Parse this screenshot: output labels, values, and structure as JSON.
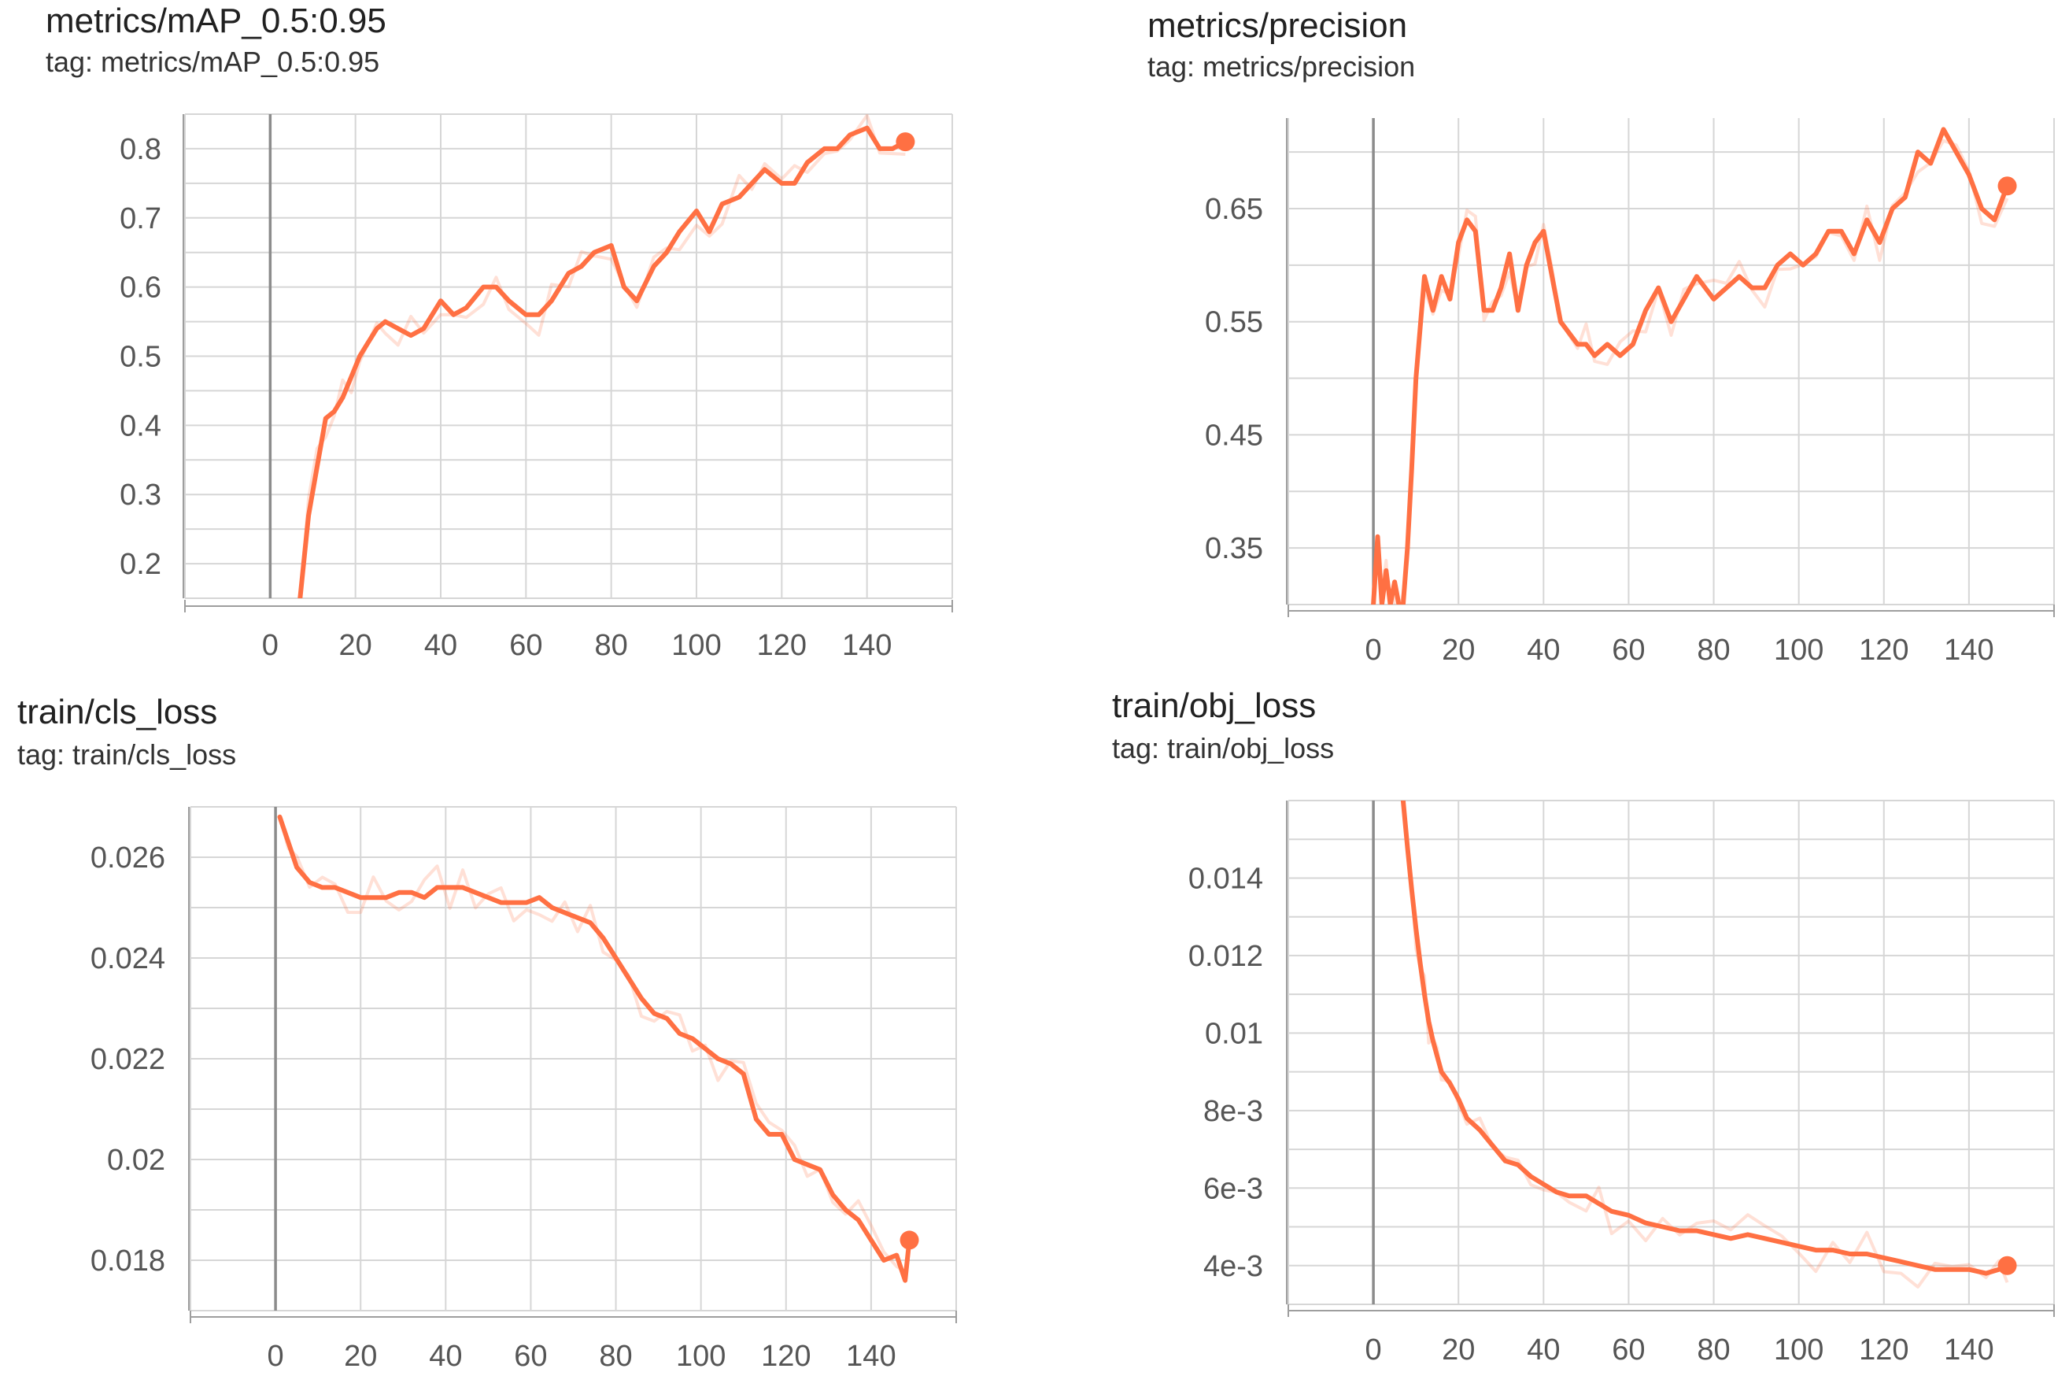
{
  "chart_data": [
    {
      "type": "line",
      "title": "metrics/mAP_0.5:0.95",
      "tag": "tag: metrics/mAP_0.5:0.95",
      "xlabel": "",
      "ylabel": "",
      "xlim": [
        -20,
        160
      ],
      "ylim": [
        0.15,
        0.85
      ],
      "xticks": [
        {
          "v": 0,
          "label": "0"
        },
        {
          "v": 20,
          "label": "20"
        },
        {
          "v": 40,
          "label": "40"
        },
        {
          "v": 60,
          "label": "60"
        },
        {
          "v": 80,
          "label": "80"
        },
        {
          "v": 100,
          "label": "100"
        },
        {
          "v": 120,
          "label": "120"
        },
        {
          "v": 140,
          "label": "140"
        }
      ],
      "yticks": [
        {
          "v": 0.2,
          "label": "0.2"
        },
        {
          "v": 0.3,
          "label": "0.3"
        },
        {
          "v": 0.4,
          "label": "0.4"
        },
        {
          "v": 0.5,
          "label": "0.5"
        },
        {
          "v": 0.6,
          "label": "0.6"
        },
        {
          "v": 0.7,
          "label": "0.7"
        },
        {
          "v": 0.8,
          "label": "0.8"
        }
      ],
      "grid": true,
      "color": "#ff7043",
      "series": [
        {
          "x": [
            7,
            9,
            11,
            13,
            15,
            17,
            19,
            21,
            23,
            25,
            27,
            30,
            33,
            36,
            40,
            43,
            46,
            50,
            53,
            56,
            60,
            63,
            66,
            70,
            73,
            76,
            80,
            83,
            86,
            90,
            93,
            96,
            100,
            103,
            106,
            110,
            113,
            116,
            120,
            123,
            126,
            130,
            133,
            136,
            140,
            143,
            146,
            149
          ],
          "y": [
            0.15,
            0.27,
            0.34,
            0.41,
            0.42,
            0.44,
            0.47,
            0.5,
            0.52,
            0.54,
            0.55,
            0.54,
            0.53,
            0.54,
            0.58,
            0.56,
            0.57,
            0.6,
            0.6,
            0.58,
            0.56,
            0.56,
            0.58,
            0.62,
            0.63,
            0.65,
            0.66,
            0.6,
            0.58,
            0.63,
            0.65,
            0.68,
            0.71,
            0.68,
            0.72,
            0.73,
            0.75,
            0.77,
            0.75,
            0.75,
            0.78,
            0.8,
            0.8,
            0.82,
            0.83,
            0.8,
            0.8,
            0.81
          ]
        }
      ]
    },
    {
      "type": "line",
      "title": "metrics/precision",
      "tag": "tag: metrics/precision",
      "xlabel": "",
      "ylabel": "",
      "xlim": [
        -20,
        160
      ],
      "ylim": [
        0.3,
        0.73
      ],
      "xticks": [
        {
          "v": 0,
          "label": "0"
        },
        {
          "v": 20,
          "label": "20"
        },
        {
          "v": 40,
          "label": "40"
        },
        {
          "v": 60,
          "label": "60"
        },
        {
          "v": 80,
          "label": "80"
        },
        {
          "v": 100,
          "label": "100"
        },
        {
          "v": 120,
          "label": "120"
        },
        {
          "v": 140,
          "label": "140"
        }
      ],
      "yticks": [
        {
          "v": 0.35,
          "label": "0.35"
        },
        {
          "v": 0.45,
          "label": "0.45"
        },
        {
          "v": 0.55,
          "label": "0.55"
        },
        {
          "v": 0.65,
          "label": "0.65"
        }
      ],
      "grid": true,
      "color": "#ff7043",
      "series": [
        {
          "x": [
            0,
            1,
            2,
            3,
            4,
            5,
            6,
            7,
            8,
            9,
            10,
            12,
            14,
            16,
            18,
            20,
            22,
            24,
            26,
            28,
            30,
            32,
            34,
            36,
            38,
            40,
            42,
            44,
            46,
            48,
            50,
            52,
            55,
            58,
            61,
            64,
            67,
            70,
            73,
            76,
            80,
            83,
            86,
            89,
            92,
            95,
            98,
            101,
            104,
            107,
            110,
            113,
            116,
            119,
            122,
            125,
            128,
            131,
            134,
            137,
            140,
            143,
            146,
            149
          ],
          "y": [
            0.3,
            0.36,
            0.3,
            0.33,
            0.3,
            0.32,
            0.3,
            0.3,
            0.35,
            0.42,
            0.5,
            0.59,
            0.56,
            0.59,
            0.57,
            0.62,
            0.64,
            0.63,
            0.56,
            0.56,
            0.58,
            0.61,
            0.56,
            0.6,
            0.62,
            0.63,
            0.59,
            0.55,
            0.54,
            0.53,
            0.53,
            0.52,
            0.53,
            0.52,
            0.53,
            0.56,
            0.58,
            0.55,
            0.57,
            0.59,
            0.57,
            0.58,
            0.59,
            0.58,
            0.58,
            0.6,
            0.61,
            0.6,
            0.61,
            0.63,
            0.63,
            0.61,
            0.64,
            0.62,
            0.65,
            0.66,
            0.7,
            0.69,
            0.72,
            0.7,
            0.68,
            0.65,
            0.64,
            0.67
          ]
        }
      ]
    },
    {
      "type": "line",
      "title": "train/cls_loss",
      "tag": "tag: train/cls_loss",
      "xlabel": "",
      "ylabel": "",
      "xlim": [
        -20,
        160
      ],
      "ylim": [
        0.017,
        0.027
      ],
      "xticks": [
        {
          "v": 0,
          "label": "0"
        },
        {
          "v": 20,
          "label": "20"
        },
        {
          "v": 40,
          "label": "40"
        },
        {
          "v": 60,
          "label": "60"
        },
        {
          "v": 80,
          "label": "80"
        },
        {
          "v": 100,
          "label": "100"
        },
        {
          "v": 120,
          "label": "120"
        },
        {
          "v": 140,
          "label": "140"
        }
      ],
      "yticks": [
        {
          "v": 0.018,
          "label": "0.018"
        },
        {
          "v": 0.02,
          "label": "0.02"
        },
        {
          "v": 0.022,
          "label": "0.022"
        },
        {
          "v": 0.024,
          "label": "0.024"
        },
        {
          "v": 0.026,
          "label": "0.026"
        }
      ],
      "grid": true,
      "color": "#ff7043",
      "series": [
        {
          "x": [
            1,
            3,
            5,
            8,
            11,
            14,
            17,
            20,
            23,
            26,
            29,
            32,
            35,
            38,
            41,
            44,
            47,
            50,
            53,
            56,
            59,
            62,
            65,
            68,
            71,
            74,
            77,
            80,
            83,
            86,
            89,
            92,
            95,
            98,
            101,
            104,
            107,
            110,
            113,
            116,
            119,
            122,
            125,
            128,
            131,
            134,
            137,
            140,
            143,
            146,
            148,
            149
          ],
          "y": [
            0.0268,
            0.0263,
            0.0258,
            0.0255,
            0.0254,
            0.0254,
            0.0253,
            0.0252,
            0.0252,
            0.0252,
            0.0253,
            0.0253,
            0.0252,
            0.0254,
            0.0254,
            0.0254,
            0.0253,
            0.0252,
            0.0251,
            0.0251,
            0.0251,
            0.0252,
            0.025,
            0.0249,
            0.0248,
            0.0247,
            0.0244,
            0.024,
            0.0236,
            0.0232,
            0.0229,
            0.0228,
            0.0225,
            0.0224,
            0.0222,
            0.022,
            0.0219,
            0.0217,
            0.0208,
            0.0205,
            0.0205,
            0.02,
            0.0199,
            0.0198,
            0.0193,
            0.019,
            0.0188,
            0.0184,
            0.018,
            0.0181,
            0.0176,
            0.0184
          ]
        }
      ]
    },
    {
      "type": "line",
      "title": "train/obj_loss",
      "tag": "tag: train/obj_loss",
      "xlabel": "",
      "ylabel": "",
      "xlim": [
        -20,
        160
      ],
      "ylim": [
        0.003,
        0.016
      ],
      "xticks": [
        {
          "v": 0,
          "label": "0"
        },
        {
          "v": 20,
          "label": "20"
        },
        {
          "v": 40,
          "label": "40"
        },
        {
          "v": 60,
          "label": "60"
        },
        {
          "v": 80,
          "label": "80"
        },
        {
          "v": 100,
          "label": "100"
        },
        {
          "v": 120,
          "label": "120"
        },
        {
          "v": 140,
          "label": "140"
        }
      ],
      "yticks": [
        {
          "v": 0.004,
          "label": "4e-3"
        },
        {
          "v": 0.006,
          "label": "6e-3"
        },
        {
          "v": 0.008,
          "label": "8e-3"
        },
        {
          "v": 0.01,
          "label": "0.01"
        },
        {
          "v": 0.012,
          "label": "0.012"
        },
        {
          "v": 0.014,
          "label": "0.014"
        }
      ],
      "grid": true,
      "color": "#ff7043",
      "series": [
        {
          "x": [
            7,
            8,
            9,
            10,
            11,
            12,
            13,
            14,
            15,
            16,
            18,
            20,
            22,
            25,
            28,
            31,
            34,
            37,
            40,
            43,
            46,
            50,
            53,
            56,
            60,
            64,
            68,
            72,
            76,
            80,
            84,
            88,
            92,
            96,
            100,
            104,
            108,
            112,
            116,
            120,
            124,
            128,
            132,
            136,
            140,
            144,
            147,
            149
          ],
          "y": [
            0.016,
            0.0148,
            0.0137,
            0.0127,
            0.0118,
            0.011,
            0.0103,
            0.0098,
            0.0094,
            0.009,
            0.0087,
            0.0083,
            0.0078,
            0.0075,
            0.0071,
            0.0067,
            0.0066,
            0.0063,
            0.0061,
            0.0059,
            0.0058,
            0.0058,
            0.0056,
            0.0054,
            0.0053,
            0.0051,
            0.005,
            0.0049,
            0.0049,
            0.0048,
            0.0047,
            0.0048,
            0.0047,
            0.0046,
            0.0045,
            0.0044,
            0.0044,
            0.0043,
            0.0043,
            0.0042,
            0.0041,
            0.004,
            0.0039,
            0.0039,
            0.0039,
            0.0038,
            0.0039,
            0.004
          ]
        }
      ]
    }
  ]
}
